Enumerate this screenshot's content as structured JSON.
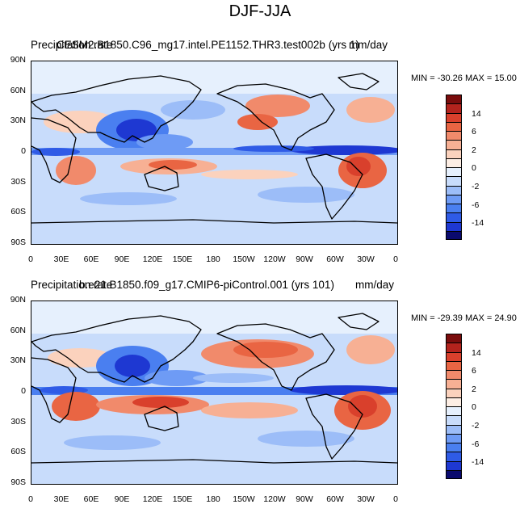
{
  "figure_title": "DJF-JJA",
  "x_tick_labels": [
    "0",
    "30E",
    "60E",
    "90E",
    "120E",
    "150E",
    "180",
    "150W",
    "120W",
    "90W",
    "60W",
    "30W",
    "0"
  ],
  "y_tick_labels": [
    "90N",
    "60N",
    "30N",
    "0",
    "30S",
    "60S",
    "90S"
  ],
  "colorbar_tick_labels": [
    "14",
    "6",
    "2",
    "0",
    "-2",
    "-6",
    "-14"
  ],
  "colors": {
    "scale": [
      "#0a0a6e",
      "#1e38d2",
      "#2f5be6",
      "#4a7ff0",
      "#6e9bf5",
      "#9cbdf8",
      "#c8dcfb",
      "#e6f0fd",
      "#fdeee4",
      "#fbd2bd",
      "#f7b094",
      "#f18a6b",
      "#e96543",
      "#d9402c",
      "#b3231d",
      "#7a0c0c"
    ]
  },
  "panels": [
    {
      "variable_label": "Precipitation rate",
      "case_label": "CESM2.B1850.C96_mg17.intel.PE1152.THR3.test002b (yrs 1)",
      "units": "mm/day",
      "minmax": "MIN = -30.26  MAX =  15.00"
    },
    {
      "variable_label": "Precipitation rate",
      "case_label": "b.e21.B1850.f09_g17.CMIP6-piControl.001 (yrs 101)",
      "units": "mm/day",
      "minmax": "MIN = -29.39  MAX =  24.90"
    }
  ]
}
